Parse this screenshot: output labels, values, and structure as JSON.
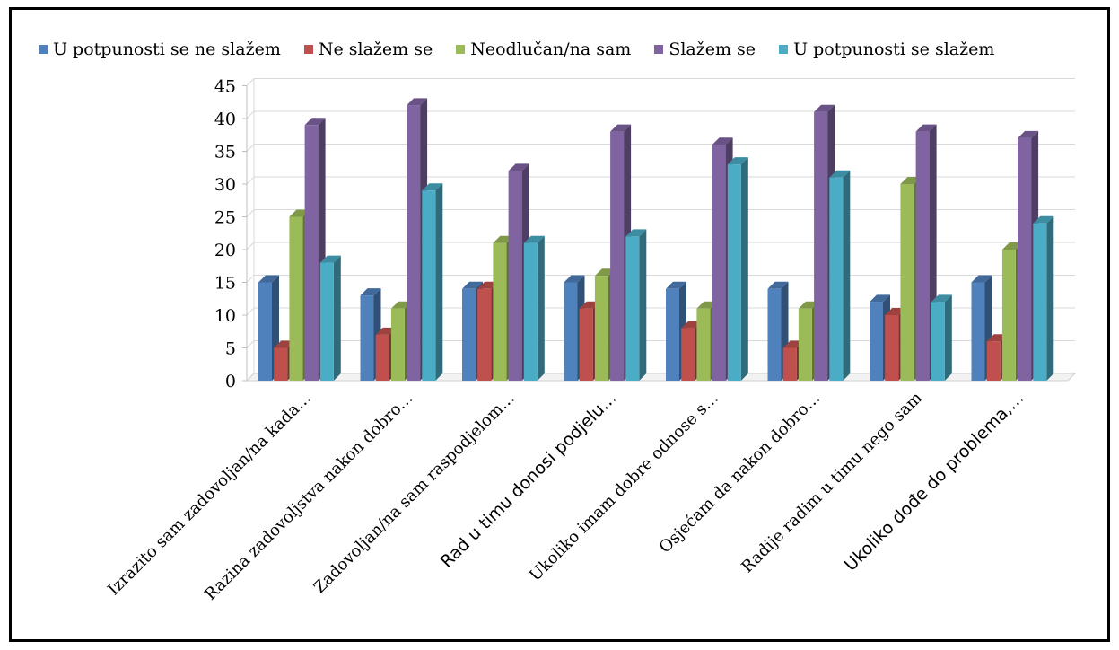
{
  "chart_data": {
    "type": "bar",
    "categories": [
      "Izrazito sam zadovoljan/na kada…",
      "Razina zadovoljstva nakon dobro…",
      "Zadovoljan/na sam raspodjelom…",
      "Rad u timu donosi podjelu…",
      "Ukoliko imam dobre odnose s…",
      "Osjećam da nakon dobro…",
      "Radije radim u timu nego sam",
      "Ukoliko dođe do problema,…"
    ],
    "series": [
      {
        "name": "U potpunosti se ne slažem",
        "color": "#4F81BD",
        "values": [
          15,
          13,
          14,
          15,
          14,
          14,
          12,
          15
        ]
      },
      {
        "name": "Ne slažem se",
        "color": "#C0504D",
        "values": [
          5,
          7,
          14,
          11,
          8,
          5,
          10,
          6
        ]
      },
      {
        "name": "Neodlučan/na sam",
        "color": "#9BBB59",
        "values": [
          25,
          11,
          21,
          16,
          11,
          11,
          30,
          20
        ]
      },
      {
        "name": "Slažem se",
        "color": "#8064A2",
        "values": [
          39,
          42,
          32,
          38,
          36,
          41,
          38,
          37
        ]
      },
      {
        "name": "U potpunosti se slažem",
        "color": "#4BACC6",
        "values": [
          18,
          29,
          21,
          22,
          33,
          31,
          12,
          24
        ]
      }
    ],
    "yticks": [
      0,
      5,
      10,
      15,
      20,
      25,
      30,
      35,
      40,
      45
    ],
    "ylim": [
      0,
      45
    ],
    "grid": true,
    "legend": "top",
    "title": "",
    "xlabel": "",
    "ylabel": ""
  }
}
